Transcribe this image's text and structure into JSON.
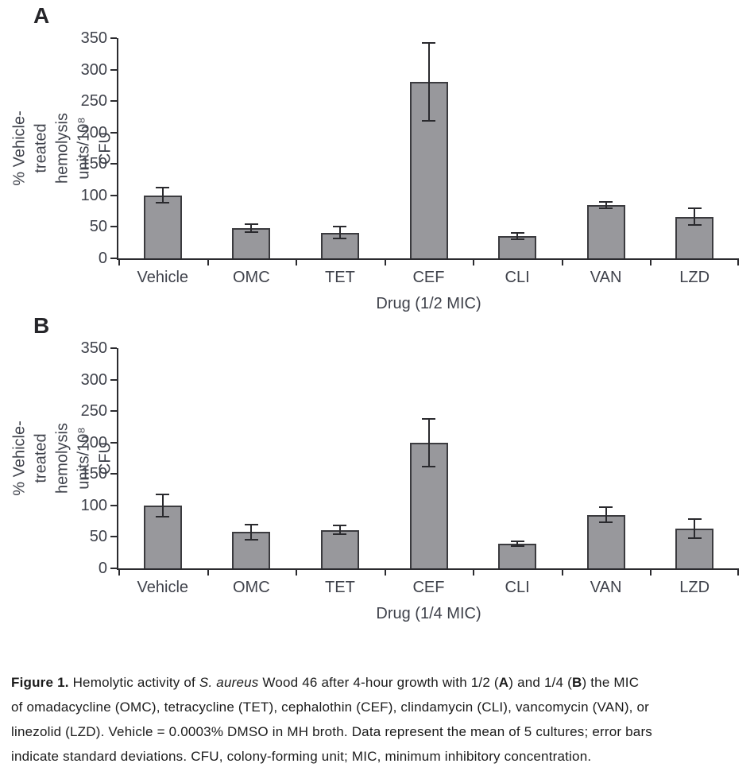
{
  "figure": {
    "background": "#ffffff",
    "colors": {
      "bar_fill": "#98989C",
      "bar_border": "#3B3B3F",
      "axis": "#2B2B2F",
      "error_bar": "#2A2A2E",
      "axis_text": "#3F424B",
      "panel_letter": "#26262A",
      "caption_text": "#1B1B1B"
    },
    "caption": {
      "lines": [
        [
          {
            "t": "Figure 1.",
            "b": true
          },
          {
            "t": " Hemolytic activity of "
          },
          {
            "t": "S. aureus",
            "i": true
          },
          {
            "t": " Wood 46 after 4-hour growth with 1/2 ("
          },
          {
            "t": "A",
            "b": true
          },
          {
            "t": ") and 1/4 ("
          },
          {
            "t": "B",
            "b": true
          },
          {
            "t": ") the MIC"
          }
        ],
        [
          {
            "t": "of omadacycline (OMC), tetracycline (TET), cephalothin (CEF), clindamycin (CLI), vancomycin (VAN), or"
          }
        ],
        [
          {
            "t": "linezolid (LZD). Vehicle = 0.0003% DMSO in MH broth. Data represent the mean of 5 cultures; error bars"
          }
        ],
        [
          {
            "t": "indicate standard deviations. CFU, colony-forming unit; MIC, minimum inhibitory concentration."
          }
        ]
      ]
    }
  },
  "chart_data": [
    {
      "panel": "A",
      "type": "bar",
      "categories": [
        "Vehicle",
        "OMC",
        "TET",
        "CEF",
        "CLI",
        "VAN",
        "LZD"
      ],
      "values": [
        100,
        48,
        41,
        280,
        35,
        85,
        66
      ],
      "errors": [
        12,
        6,
        10,
        62,
        5,
        5,
        13
      ],
      "error_meaning": "standard deviation",
      "xlabel": "Drug (1/2 MIC)",
      "ylabel_lines": [
        "% Vehicle-treated",
        "hemolysis units/10⁸ CFU"
      ],
      "ylim": [
        0,
        350
      ],
      "ytick_step": 50,
      "grid": false,
      "legend": false
    },
    {
      "panel": "B",
      "type": "bar",
      "categories": [
        "Vehicle",
        "OMC",
        "TET",
        "CEF",
        "CLI",
        "VAN",
        "LZD"
      ],
      "values": [
        100,
        58,
        61,
        200,
        39,
        85,
        63
      ],
      "errors": [
        18,
        12,
        7,
        38,
        4,
        12,
        15
      ],
      "error_meaning": "standard deviation",
      "xlabel": "Drug (1/4 MIC)",
      "ylabel_lines": [
        "% Vehicle-treated",
        "hemolysis units/10⁸ CFU"
      ],
      "ylim": [
        0,
        350
      ],
      "ytick_step": 50,
      "grid": false,
      "legend": false
    }
  ]
}
